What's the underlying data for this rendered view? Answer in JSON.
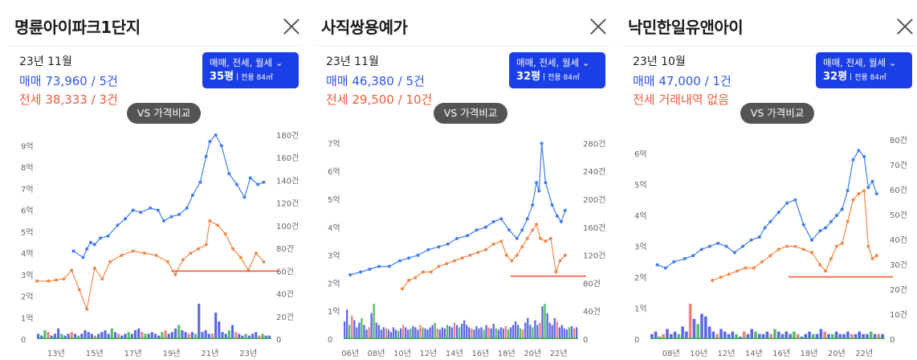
{
  "theme": {
    "sale_color": "#3f7ee8",
    "rent_color": "#f08a4b",
    "volume_blue": "#3f4ee0",
    "volume_red": "#ee6a6a",
    "volume_green": "#37b24d",
    "ref_line": "#f0593c"
  },
  "panels": [
    {
      "title": "명륜아이파크1단지",
      "date": "23년 11월",
      "sale_text": "매매 73,960 / 5건",
      "rent_text": "전세 38,333 / 3건",
      "filter_types": "매매, 전세, 월세",
      "filter_size": "35평",
      "filter_area": "전용 84㎡",
      "vs_label": "VS 가격비교",
      "chart_data": {
        "type": "line",
        "x_ticks": [
          "13년",
          "15년",
          "17년",
          "19년",
          "21년",
          "23년"
        ],
        "x_range": [
          2012,
          2024.2
        ],
        "y_left_ticks": [
          "0",
          "1억",
          "2억",
          "3억",
          "4억",
          "5억",
          "6억",
          "7억",
          "8억",
          "9억"
        ],
        "y_left_range": [
          0,
          9.5
        ],
        "y_right_ticks": [
          "0",
          "20건",
          "40건",
          "60건",
          "80건",
          "100건",
          "120건",
          "140건",
          "160건",
          "180건"
        ],
        "y_right_range": [
          0,
          180
        ],
        "series": [
          {
            "name": "매매",
            "x": [
              2013.9,
              2014.4,
              2014.6,
              2014.8,
              2015.0,
              2015.3,
              2015.7,
              2016.2,
              2016.6,
              2017.0,
              2017.4,
              2017.9,
              2018.3,
              2018.6,
              2019.0,
              2019.4,
              2019.8,
              2020.1,
              2020.5,
              2020.8,
              2021.0,
              2021.3,
              2021.6,
              2022.0,
              2022.4,
              2022.8,
              2023.1,
              2023.5,
              2023.8
            ],
            "values": [
              4.1,
              3.8,
              4.2,
              4.5,
              4.4,
              4.7,
              4.8,
              5.3,
              5.6,
              6.0,
              5.9,
              6.1,
              6.0,
              5.5,
              5.7,
              5.8,
              6.1,
              6.7,
              7.3,
              8.5,
              9.2,
              9.5,
              9.0,
              7.7,
              7.2,
              6.6,
              7.5,
              7.2,
              7.3
            ]
          },
          {
            "name": "전세",
            "x": [
              2012.0,
              2012.6,
              2013.0,
              2013.4,
              2013.8,
              2014.2,
              2014.6,
              2015.0,
              2015.4,
              2015.8,
              2016.4,
              2017.0,
              2017.6,
              2018.2,
              2018.8,
              2019.2,
              2019.6,
              2020.0,
              2020.4,
              2020.8,
              2021.0,
              2021.4,
              2021.8,
              2022.2,
              2022.6,
              2023.0,
              2023.4,
              2023.8
            ],
            "values": [
              2.7,
              2.7,
              2.75,
              2.8,
              3.2,
              2.3,
              1.4,
              3.3,
              2.8,
              3.6,
              3.9,
              4.1,
              4.0,
              3.9,
              3.6,
              3.0,
              3.7,
              4.0,
              4.2,
              4.4,
              5.5,
              5.3,
              4.9,
              4.2,
              3.8,
              3.2,
              4.0,
              3.6
            ]
          }
        ],
        "volume": [
          3,
          2,
          5,
          4,
          2,
          3,
          6,
          3,
          2,
          3,
          4,
          3,
          2,
          3,
          5,
          4,
          3,
          2,
          3,
          4,
          5,
          3,
          6,
          4,
          3,
          2,
          3,
          4,
          3,
          5,
          6,
          4,
          3,
          3,
          4,
          3,
          2,
          4,
          5,
          3,
          4,
          6,
          8,
          5,
          4,
          3,
          4,
          3,
          20,
          4,
          5,
          3,
          3,
          15,
          10,
          4,
          3,
          5,
          8,
          4,
          3,
          2,
          3,
          2,
          3,
          4,
          2,
          3,
          2,
          2
        ]
      }
    },
    {
      "title": "사직쌍용예가",
      "date": "23년 11월",
      "sale_text": "매매 46,380 / 5건",
      "rent_text": "전세 29,500 / 10건",
      "filter_types": "매매, 전세, 월세",
      "filter_size": "32평",
      "filter_area": "전용 84㎡",
      "vs_label": "VS 가격비교",
      "chart_data": {
        "type": "line",
        "x_ticks": [
          "06년",
          "08년",
          "10년",
          "12년",
          "14년",
          "16년",
          "18년",
          "20년",
          "22년"
        ],
        "x_range": [
          2005.5,
          2023.5
        ],
        "y_left_ticks": [
          "0",
          "1억",
          "2억",
          "3억",
          "4억",
          "5억",
          "6억",
          "7억"
        ],
        "y_left_range": [
          0,
          7.3
        ],
        "y_right_ticks": [
          "0",
          "40건",
          "80건",
          "120건",
          "160건",
          "200건",
          "240건",
          "280건"
        ],
        "y_right_range": [
          0,
          292
        ],
        "series": [
          {
            "name": "매매",
            "x": [
              2006.0,
              2006.8,
              2007.5,
              2008.2,
              2009.0,
              2009.8,
              2010.5,
              2011.2,
              2012.0,
              2012.8,
              2013.5,
              2014.2,
              2015.0,
              2015.7,
              2016.4,
              2017.0,
              2017.6,
              2018.2,
              2018.8,
              2019.2,
              2019.6,
              2020.0,
              2020.3,
              2020.5,
              2020.7,
              2021.0,
              2021.5,
              2021.9,
              2022.2,
              2022.5
            ],
            "values": [
              2.3,
              2.4,
              2.5,
              2.6,
              2.6,
              2.8,
              2.9,
              3.0,
              3.2,
              3.3,
              3.4,
              3.6,
              3.7,
              3.9,
              4.0,
              4.2,
              4.3,
              3.9,
              3.6,
              3.9,
              4.3,
              4.8,
              5.6,
              5.3,
              7.0,
              5.6,
              4.8,
              4.4,
              4.2,
              4.6
            ]
          },
          {
            "name": "전세",
            "x": [
              2010.0,
              2010.5,
              2011.0,
              2011.6,
              2012.2,
              2012.8,
              2013.4,
              2014.0,
              2014.6,
              2015.2,
              2015.8,
              2016.4,
              2017.0,
              2017.6,
              2018.0,
              2018.4,
              2018.8,
              2019.2,
              2019.6,
              2020.0,
              2020.3,
              2020.6,
              2021.0,
              2021.4,
              2021.8,
              2022.1,
              2022.5
            ],
            "values": [
              1.8,
              2.1,
              2.2,
              2.4,
              2.4,
              2.6,
              2.7,
              2.8,
              2.9,
              3.0,
              3.1,
              3.2,
              3.4,
              3.5,
              3.0,
              2.8,
              3.0,
              3.3,
              3.6,
              3.9,
              4.1,
              3.6,
              3.5,
              3.6,
              2.4,
              2.8,
              3.0
            ]
          }
        ],
        "volume": [
          15,
          25,
          12,
          20,
          16,
          10,
          14,
          18,
          12,
          8,
          10,
          22,
          30,
          14,
          12,
          8,
          10,
          9,
          8,
          6,
          10,
          8,
          7,
          9,
          12,
          10,
          8,
          9,
          11,
          10,
          8,
          12,
          10,
          9,
          8,
          10,
          12,
          14,
          9,
          8,
          10,
          9,
          12,
          11,
          10,
          14,
          12,
          10,
          13,
          16,
          12,
          10,
          9,
          8,
          11,
          9,
          10,
          8,
          12,
          10,
          9,
          13,
          9,
          8,
          10,
          9,
          11,
          8,
          10,
          12,
          15,
          12,
          9,
          8,
          14,
          18,
          12,
          10,
          16,
          12,
          14,
          28,
          30,
          22,
          14,
          12,
          18,
          15,
          10,
          12,
          9,
          8,
          10,
          11,
          9,
          10
        ]
      }
    },
    {
      "title": "낙민한일유앤아이",
      "date": "23년 10월",
      "sale_text": "매매 47,000 / 1건",
      "rent_text": "전세 거래내역 없음",
      "filter_types": "매매, 전세, 월세",
      "filter_size": "32평",
      "filter_area": "전용 84㎡",
      "vs_label": "VS 가격비교",
      "chart_data": {
        "type": "line",
        "x_ticks": [
          "08년",
          "10년",
          "12년",
          "14년",
          "16년",
          "18년",
          "20년",
          "22년"
        ],
        "x_range": [
          2006.5,
          2023.5
        ],
        "y_left_ticks": [
          "0",
          "1억",
          "2억",
          "3억",
          "4억",
          "5억",
          "6억"
        ],
        "y_left_range": [
          0,
          6.6
        ],
        "y_right_ticks": [
          "0",
          "10건",
          "20건",
          "30건",
          "40건",
          "50건",
          "60건",
          "70건",
          "80건"
        ],
        "y_right_range": [
          0,
          82
        ],
        "series": [
          {
            "name": "매매",
            "x": [
              2007.0,
              2007.6,
              2008.2,
              2009.0,
              2009.6,
              2010.2,
              2010.8,
              2011.4,
              2012.0,
              2012.6,
              2013.2,
              2013.8,
              2014.4,
              2014.8,
              2015.2,
              2015.8,
              2016.4,
              2017.0,
              2017.6,
              2018.2,
              2018.8,
              2019.2,
              2019.6,
              2020.0,
              2020.4,
              2020.8,
              2021.2,
              2021.6,
              2022.0,
              2022.3,
              2022.6,
              2022.9
            ],
            "values": [
              2.4,
              2.3,
              2.5,
              2.6,
              2.7,
              2.9,
              3.0,
              3.1,
              3.0,
              2.8,
              3.0,
              3.2,
              3.3,
              3.6,
              3.8,
              4.1,
              4.4,
              4.5,
              3.7,
              3.2,
              3.5,
              3.6,
              3.8,
              4.0,
              4.2,
              4.8,
              5.8,
              6.1,
              5.9,
              4.9,
              5.1,
              4.7
            ]
          },
          {
            "name": "전세",
            "x": [
              2011.0,
              2011.6,
              2012.2,
              2012.8,
              2013.4,
              2014.0,
              2014.6,
              2015.2,
              2015.8,
              2016.4,
              2017.0,
              2017.6,
              2018.2,
              2018.8,
              2019.2,
              2019.6,
              2020.0,
              2020.4,
              2020.8,
              2021.2,
              2021.6,
              2022.0,
              2022.3,
              2022.6,
              2022.9
            ],
            "values": [
              1.9,
              2.0,
              2.1,
              2.2,
              2.3,
              2.3,
              2.5,
              2.7,
              2.9,
              3.0,
              3.0,
              2.9,
              2.8,
              2.4,
              2.2,
              2.6,
              3.0,
              3.1,
              3.8,
              4.5,
              4.7,
              4.8,
              3.0,
              2.6,
              2.7
            ]
          }
        ],
        "volume": [
          2,
          3,
          1,
          2,
          4,
          2,
          3,
          2,
          5,
          3,
          14,
          8,
          6,
          10,
          9,
          5,
          3,
          2,
          4,
          3,
          2,
          3,
          2,
          1,
          3,
          2,
          4,
          3,
          2,
          2,
          3,
          2,
          4,
          3,
          2,
          3,
          2,
          3,
          2,
          1,
          2,
          3,
          2,
          2,
          4,
          3,
          2,
          2,
          3,
          2,
          2,
          3,
          2,
          2,
          3,
          2,
          2,
          3,
          2,
          2,
          2
        ]
      }
    }
  ]
}
